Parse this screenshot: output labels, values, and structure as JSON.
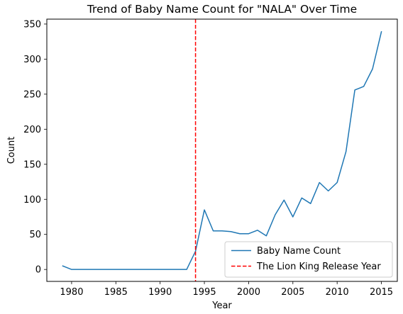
{
  "chart_data": {
    "type": "line",
    "title": "Trend of Baby Name Count for \"NALA\" Over Time",
    "xlabel": "Year",
    "ylabel": "Count",
    "xlim": [
      1977.2,
      2016.8
    ],
    "ylim": [
      -17,
      357
    ],
    "xticks": [
      1980,
      1985,
      1990,
      1995,
      2000,
      2005,
      2010,
      2015
    ],
    "yticks": [
      0,
      50,
      100,
      150,
      200,
      250,
      300,
      350
    ],
    "grid": false,
    "legend_position": "lower right",
    "series": [
      {
        "name": "Baby Name Count",
        "color": "#1f77b4",
        "style": "solid",
        "x": [
          1979,
          1980,
          1981,
          1982,
          1983,
          1984,
          1985,
          1986,
          1987,
          1988,
          1989,
          1990,
          1991,
          1992,
          1993,
          1994,
          1995,
          1996,
          1997,
          1998,
          1999,
          2000,
          2001,
          2002,
          2003,
          2004,
          2005,
          2006,
          2007,
          2008,
          2009,
          2010,
          2011,
          2012,
          2013,
          2014,
          2015
        ],
        "y": [
          5,
          0,
          0,
          0,
          0,
          0,
          0,
          0,
          0,
          0,
          0,
          0,
          0,
          0,
          0,
          26,
          85,
          55,
          55,
          54,
          51,
          51,
          56,
          48,
          78,
          99,
          75,
          102,
          94,
          124,
          112,
          124,
          168,
          256,
          261,
          286,
          339
        ]
      }
    ],
    "reference_lines": [
      {
        "name": "The Lion King Release Year",
        "x": 1994,
        "color": "#ff0000",
        "style": "dashed"
      }
    ]
  }
}
